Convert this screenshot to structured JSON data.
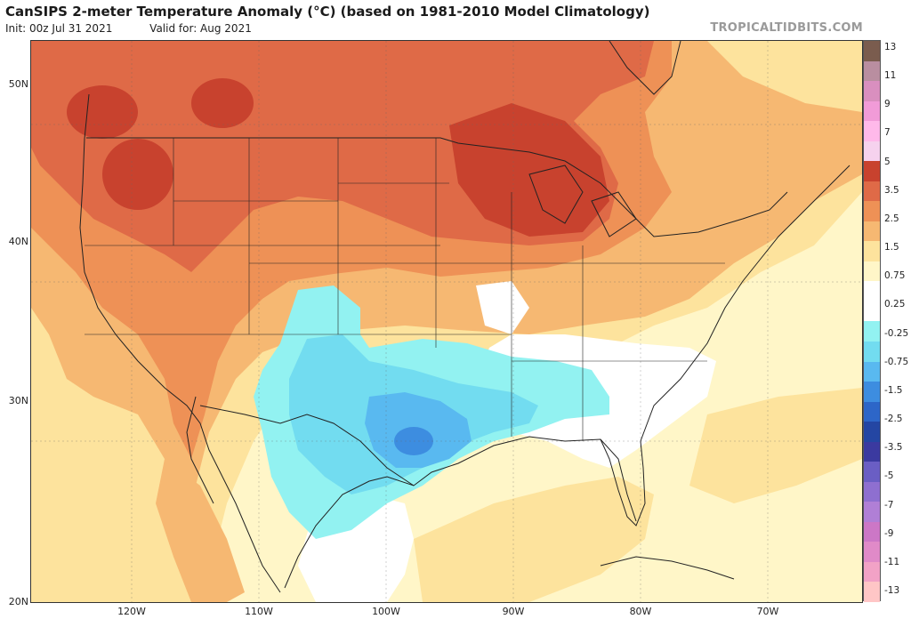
{
  "header": {
    "title": "CanSIPS 2-meter Temperature Anomaly (°C) (based on 1981-2010 Model Climatology)",
    "init": "Init: 00z Jul 31 2021",
    "valid": "Valid for: Aug 2021",
    "brand": "TROPICALTIDBITS.COM"
  },
  "map": {
    "lat_labels": [
      "50N",
      "40N",
      "30N",
      "20N"
    ],
    "lon_labels": [
      "120W",
      "110W",
      "100W",
      "90W",
      "80W",
      "70W"
    ]
  },
  "colorbar": {
    "labels": [
      "13",
      "11",
      "9",
      "7",
      "5",
      "3.5",
      "2.5",
      "1.5",
      "0.75",
      "0.25",
      "-0.25",
      "-0.75",
      "-1.5",
      "-2.5",
      "-3.5",
      "-5",
      "-7",
      "-9",
      "-11",
      "-13"
    ],
    "colors": [
      "#7a5c4e",
      "#b98ea0",
      "#d98fbf",
      "#f19bd8",
      "#ffb9ea",
      "#f6d2ee",
      "#c8422e",
      "#df6a47",
      "#ee9156",
      "#f6b872",
      "#fde39d",
      "#fff6c8",
      "#ffffff",
      "#ffffff",
      "#92f2f1",
      "#72dcf0",
      "#59b9f0",
      "#3d8de0",
      "#2d66c8",
      "#2446a3",
      "#3b3aa0",
      "#6a5ec4",
      "#8e6fd0",
      "#b07fd6",
      "#cc77c6",
      "#e08ac8",
      "#f2a2c6",
      "#ffc6c6"
    ]
  },
  "colors": {
    "warm_strong": "#c8422e",
    "warm_mid": "#df6a47",
    "warm_light": "#ee9156",
    "warm_pale": "#f6b872",
    "warm_faint": "#fde39d",
    "near_zero": "#fff6c8",
    "neutral": "#ffffff",
    "cool_faint": "#92f2f1",
    "cool_light": "#72dcf0",
    "cool_mid": "#59b9f0",
    "cool_strong": "#3d8de0"
  }
}
